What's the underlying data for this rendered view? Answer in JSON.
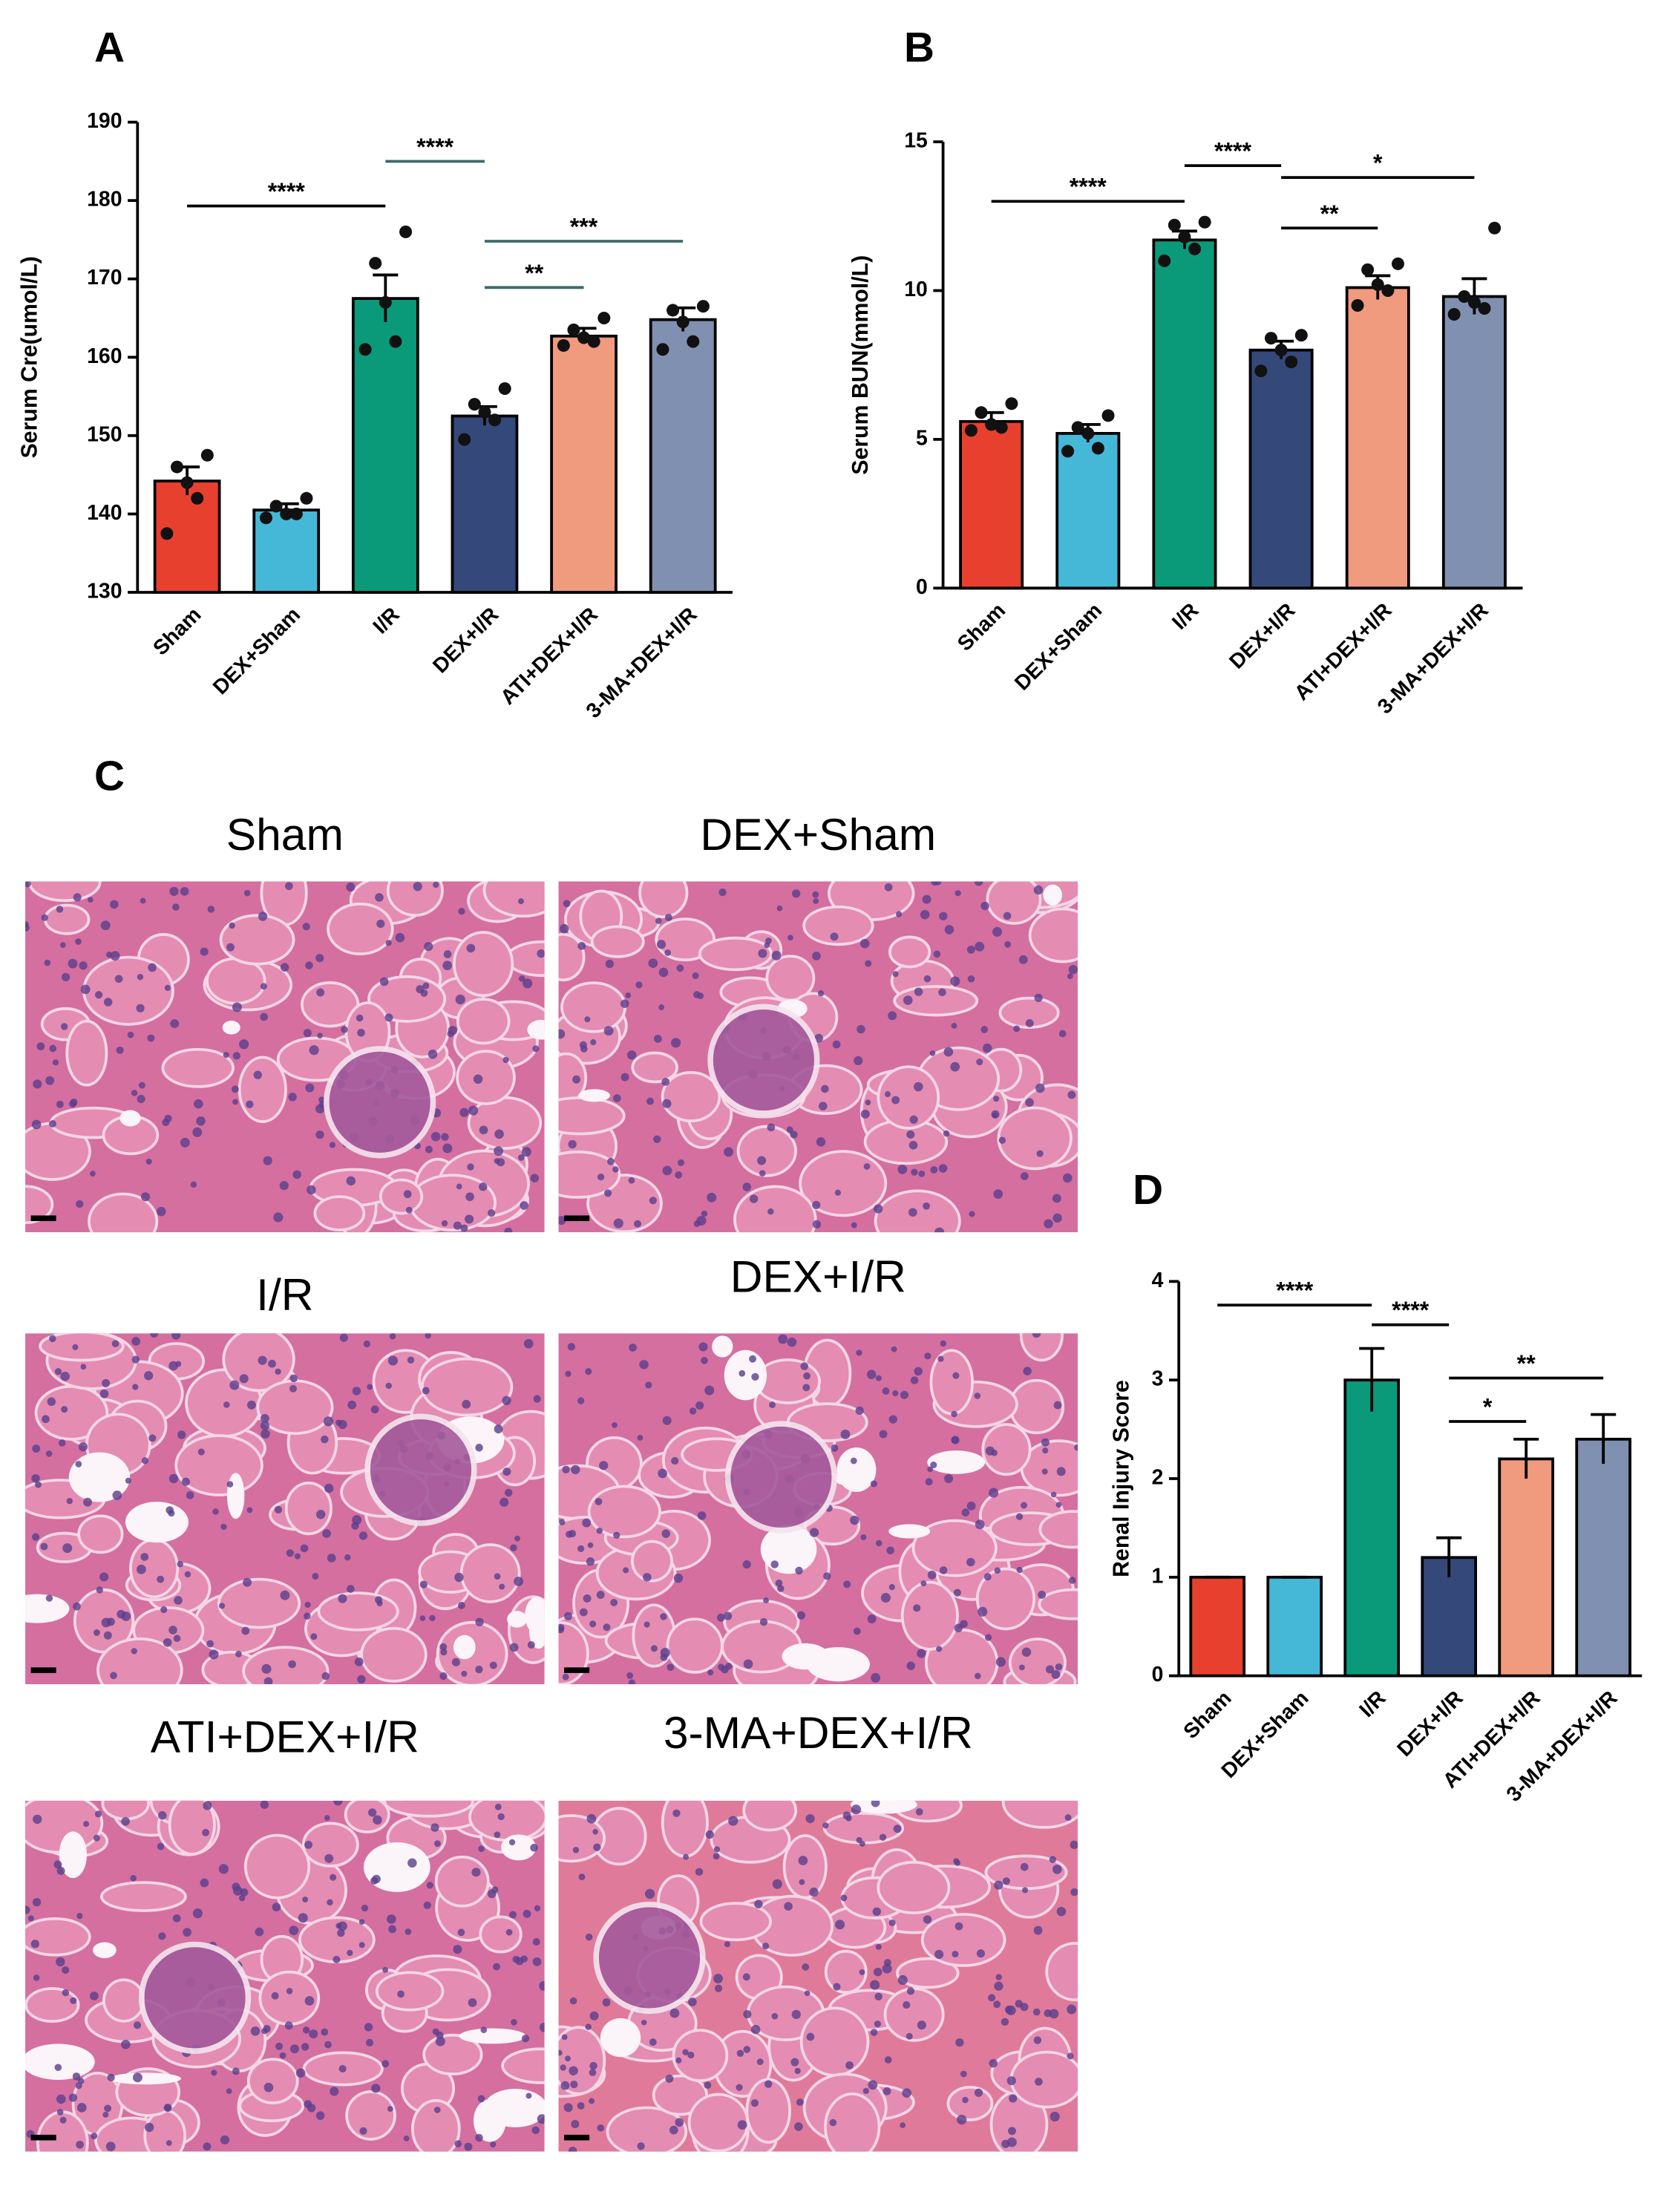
{
  "chart_data": [
    {
      "type": "bar",
      "panel": "A",
      "ylabel": "Serum Cre(umol/L)",
      "categories": [
        "Sham",
        "DEX+Sham",
        "I/R",
        "DEX+I/R",
        "ATI+DEX+I/R",
        "3-MA+DEX+I/R"
      ],
      "colors": [
        "#e8402e",
        "#45b8d8",
        "#0a9a7a",
        "#34497a",
        "#f09a7e",
        "#8090b0"
      ],
      "values": [
        144.2,
        140.5,
        167.5,
        152.5,
        162.7,
        164.8
      ],
      "errors": [
        1.8,
        0.8,
        3.0,
        1.2,
        1.0,
        1.5
      ],
      "points": [
        [
          147.5,
          146,
          144,
          142,
          137.5
        ],
        [
          142,
          141,
          140,
          140,
          139.5
        ],
        [
          176,
          172,
          167,
          162,
          161
        ],
        [
          156,
          154,
          153,
          152,
          149.5
        ],
        [
          165,
          163.5,
          162.5,
          162,
          161.5
        ],
        [
          166.5,
          166,
          164.5,
          162,
          161
        ]
      ],
      "annotations": [
        {
          "label": "****",
          "groups": [
            0,
            2
          ],
          "y": 179.3,
          "color": "#000000"
        },
        {
          "label": "****",
          "groups": [
            2,
            3
          ],
          "y": 185,
          "color": "#3d6b6b"
        },
        {
          "label": "***",
          "groups": [
            3,
            5
          ],
          "y": 174.8,
          "color": "#3d6b6b"
        },
        {
          "label": "**",
          "groups": [
            3,
            4
          ],
          "y": 168.9,
          "color": "#3d6b6b"
        }
      ],
      "ylim": [
        130,
        190
      ],
      "yticks": [
        130,
        140,
        150,
        160,
        170,
        180,
        190
      ]
    },
    {
      "type": "bar",
      "panel": "B",
      "ylabel": "Serum BUN(mmol/L)",
      "categories": [
        "Sham",
        "DEX+Sham",
        "I/R",
        "DEX+I/R",
        "ATI+DEX+I/R",
        "3-MA+DEX+I/R"
      ],
      "colors": [
        "#e8402e",
        "#45b8d8",
        "#0a9a7a",
        "#34497a",
        "#f09a7e",
        "#8090b0"
      ],
      "values": [
        5.6,
        5.2,
        11.7,
        8.0,
        10.1,
        9.8
      ],
      "errors": [
        0.3,
        0.3,
        0.3,
        0.3,
        0.4,
        0.6
      ],
      "points": [
        [
          6.2,
          5.9,
          5.5,
          5.4,
          5.3
        ],
        [
          5.8,
          5.4,
          5.2,
          4.7,
          4.6
        ],
        [
          12.3,
          12.2,
          11.8,
          11.4,
          11.0
        ],
        [
          8.5,
          8.4,
          8.0,
          7.6,
          7.3
        ],
        [
          10.9,
          10.7,
          10.2,
          10.0,
          9.5
        ],
        [
          12.1,
          9.8,
          9.6,
          9.4,
          9.2
        ]
      ],
      "annotations": [
        {
          "label": "****",
          "groups": [
            0,
            2
          ],
          "y": 13.0,
          "color": "#000000"
        },
        {
          "label": "****",
          "groups": [
            2,
            3
          ],
          "y": 14.2,
          "color": "#000000"
        },
        {
          "label": "*",
          "groups": [
            3,
            5
          ],
          "y": 13.8,
          "color": "#000000"
        },
        {
          "label": "**",
          "groups": [
            3,
            4
          ],
          "y": 12.1,
          "color": "#000000"
        }
      ],
      "ylim": [
        0,
        15
      ],
      "yticks": [
        0,
        5,
        10,
        15
      ]
    },
    {
      "type": "bar",
      "panel": "D",
      "ylabel": "Renal Injury Score",
      "categories": [
        "Sham",
        "DEX+Sham",
        "I/R",
        "DEX+I/R",
        "ATI+DEX+I/R",
        "3-MA+DEX+I/R"
      ],
      "colors": [
        "#e8402e",
        "#45b8d8",
        "#0a9a7a",
        "#34497a",
        "#f09a7e",
        "#8090b0"
      ],
      "values": [
        1,
        1,
        3.0,
        1.2,
        2.2,
        2.4
      ],
      "errors": [
        0,
        0,
        0.32,
        0.2,
        0.2,
        0.25
      ],
      "annotations": [
        {
          "label": "****",
          "groups": [
            0,
            2
          ],
          "y": 3.76,
          "color": "#000000"
        },
        {
          "label": "****",
          "groups": [
            2,
            3
          ],
          "y": 3.56,
          "color": "#000000"
        },
        {
          "label": "**",
          "groups": [
            3,
            5
          ],
          "y": 3.02,
          "color": "#000000"
        },
        {
          "label": "*",
          "groups": [
            3,
            4
          ],
          "y": 2.58,
          "color": "#000000"
        }
      ],
      "ylim": [
        0,
        4
      ],
      "yticks": [
        0,
        1,
        2,
        3,
        4
      ]
    }
  ],
  "histology": {
    "panel": "C",
    "images": [
      "Sham",
      "DEX+Sham",
      "I/R",
      "DEX+I/R",
      "ATI+DEX+I/R",
      "3-MA+DEX+I/R"
    ]
  }
}
